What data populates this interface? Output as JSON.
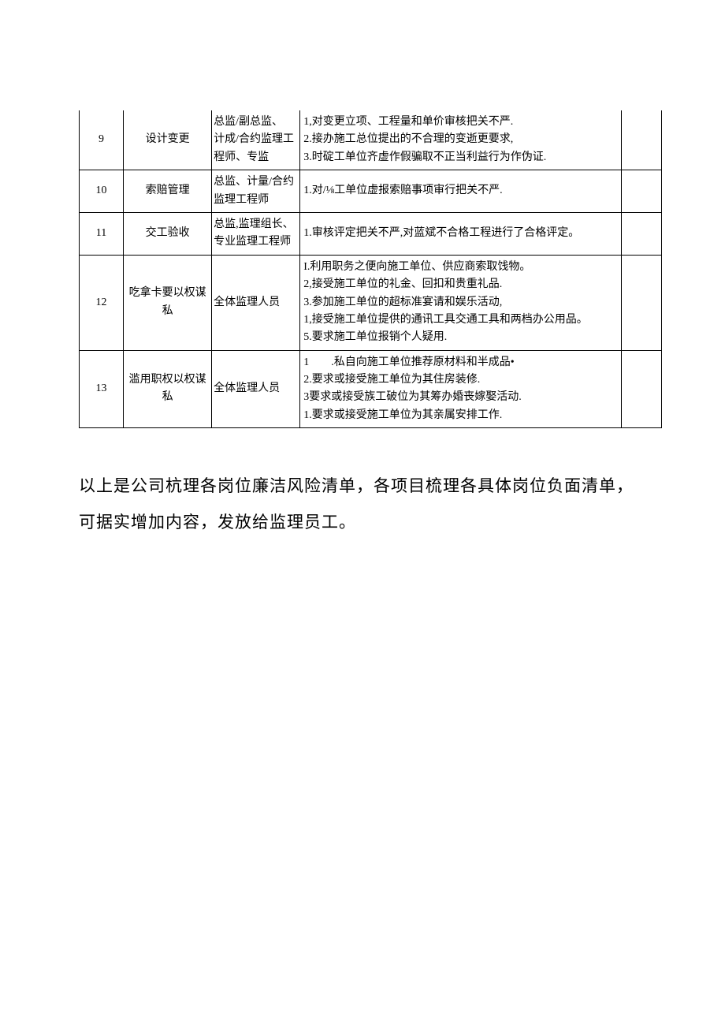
{
  "table": {
    "rows": [
      {
        "num": "9",
        "category": "设计变更",
        "role": "总监/副总监、\n计成/合约监理工程师、专监",
        "content": "1,对变更立项、工程量和单价审核把关不严.\n2.接办施工总位提出的不合理的变逝更要求,\n3.时碇工单位齐虚作假骗取不正当利益行为作伪证."
      },
      {
        "num": "10",
        "category": "索赔管理",
        "role": "总监、计量/合约监理工程师",
        "content": "1.对/⅛工单位虚报索赔事项审行把关不严."
      },
      {
        "num": "11",
        "category": "交工验收",
        "role": "总监,监理组长、专业监理工程师",
        "content": "1.审核评定把关不严,对蓝斌不合格工程进行了合格评定。"
      },
      {
        "num": "12",
        "category": "吃拿卡要以权谋私",
        "role": "全体监理人员",
        "content": "I.利用职务之便向施工单位、供应商索取饯物。\n2,接受施工单位的礼金、回扣和贵重礼品.\n3.参加施工单位的超标准宴请和娱乐活动,\n1,接受施工单位提供的通讯工具交通工具和两档办公用品。\n5.要求施工单位报销个人疑用."
      },
      {
        "num": "13",
        "category": "滥用职权以权谋私",
        "role": "全体监理人员",
        "content": "1　　.私自向施工单位推荐原材料和半成品•\n2.要求或接受施工单位为其住房装修.\n3要求或接受族工破位为其筹办婚丧嫁娶活动.\n1.要求或接受施工单位为其亲属安排工作."
      }
    ]
  },
  "footer": "以上是公司杭理各岗位廉洁风险清单，各项目梳理各具体岗位负面清单，可据实增加内容，发放给监理员工。"
}
